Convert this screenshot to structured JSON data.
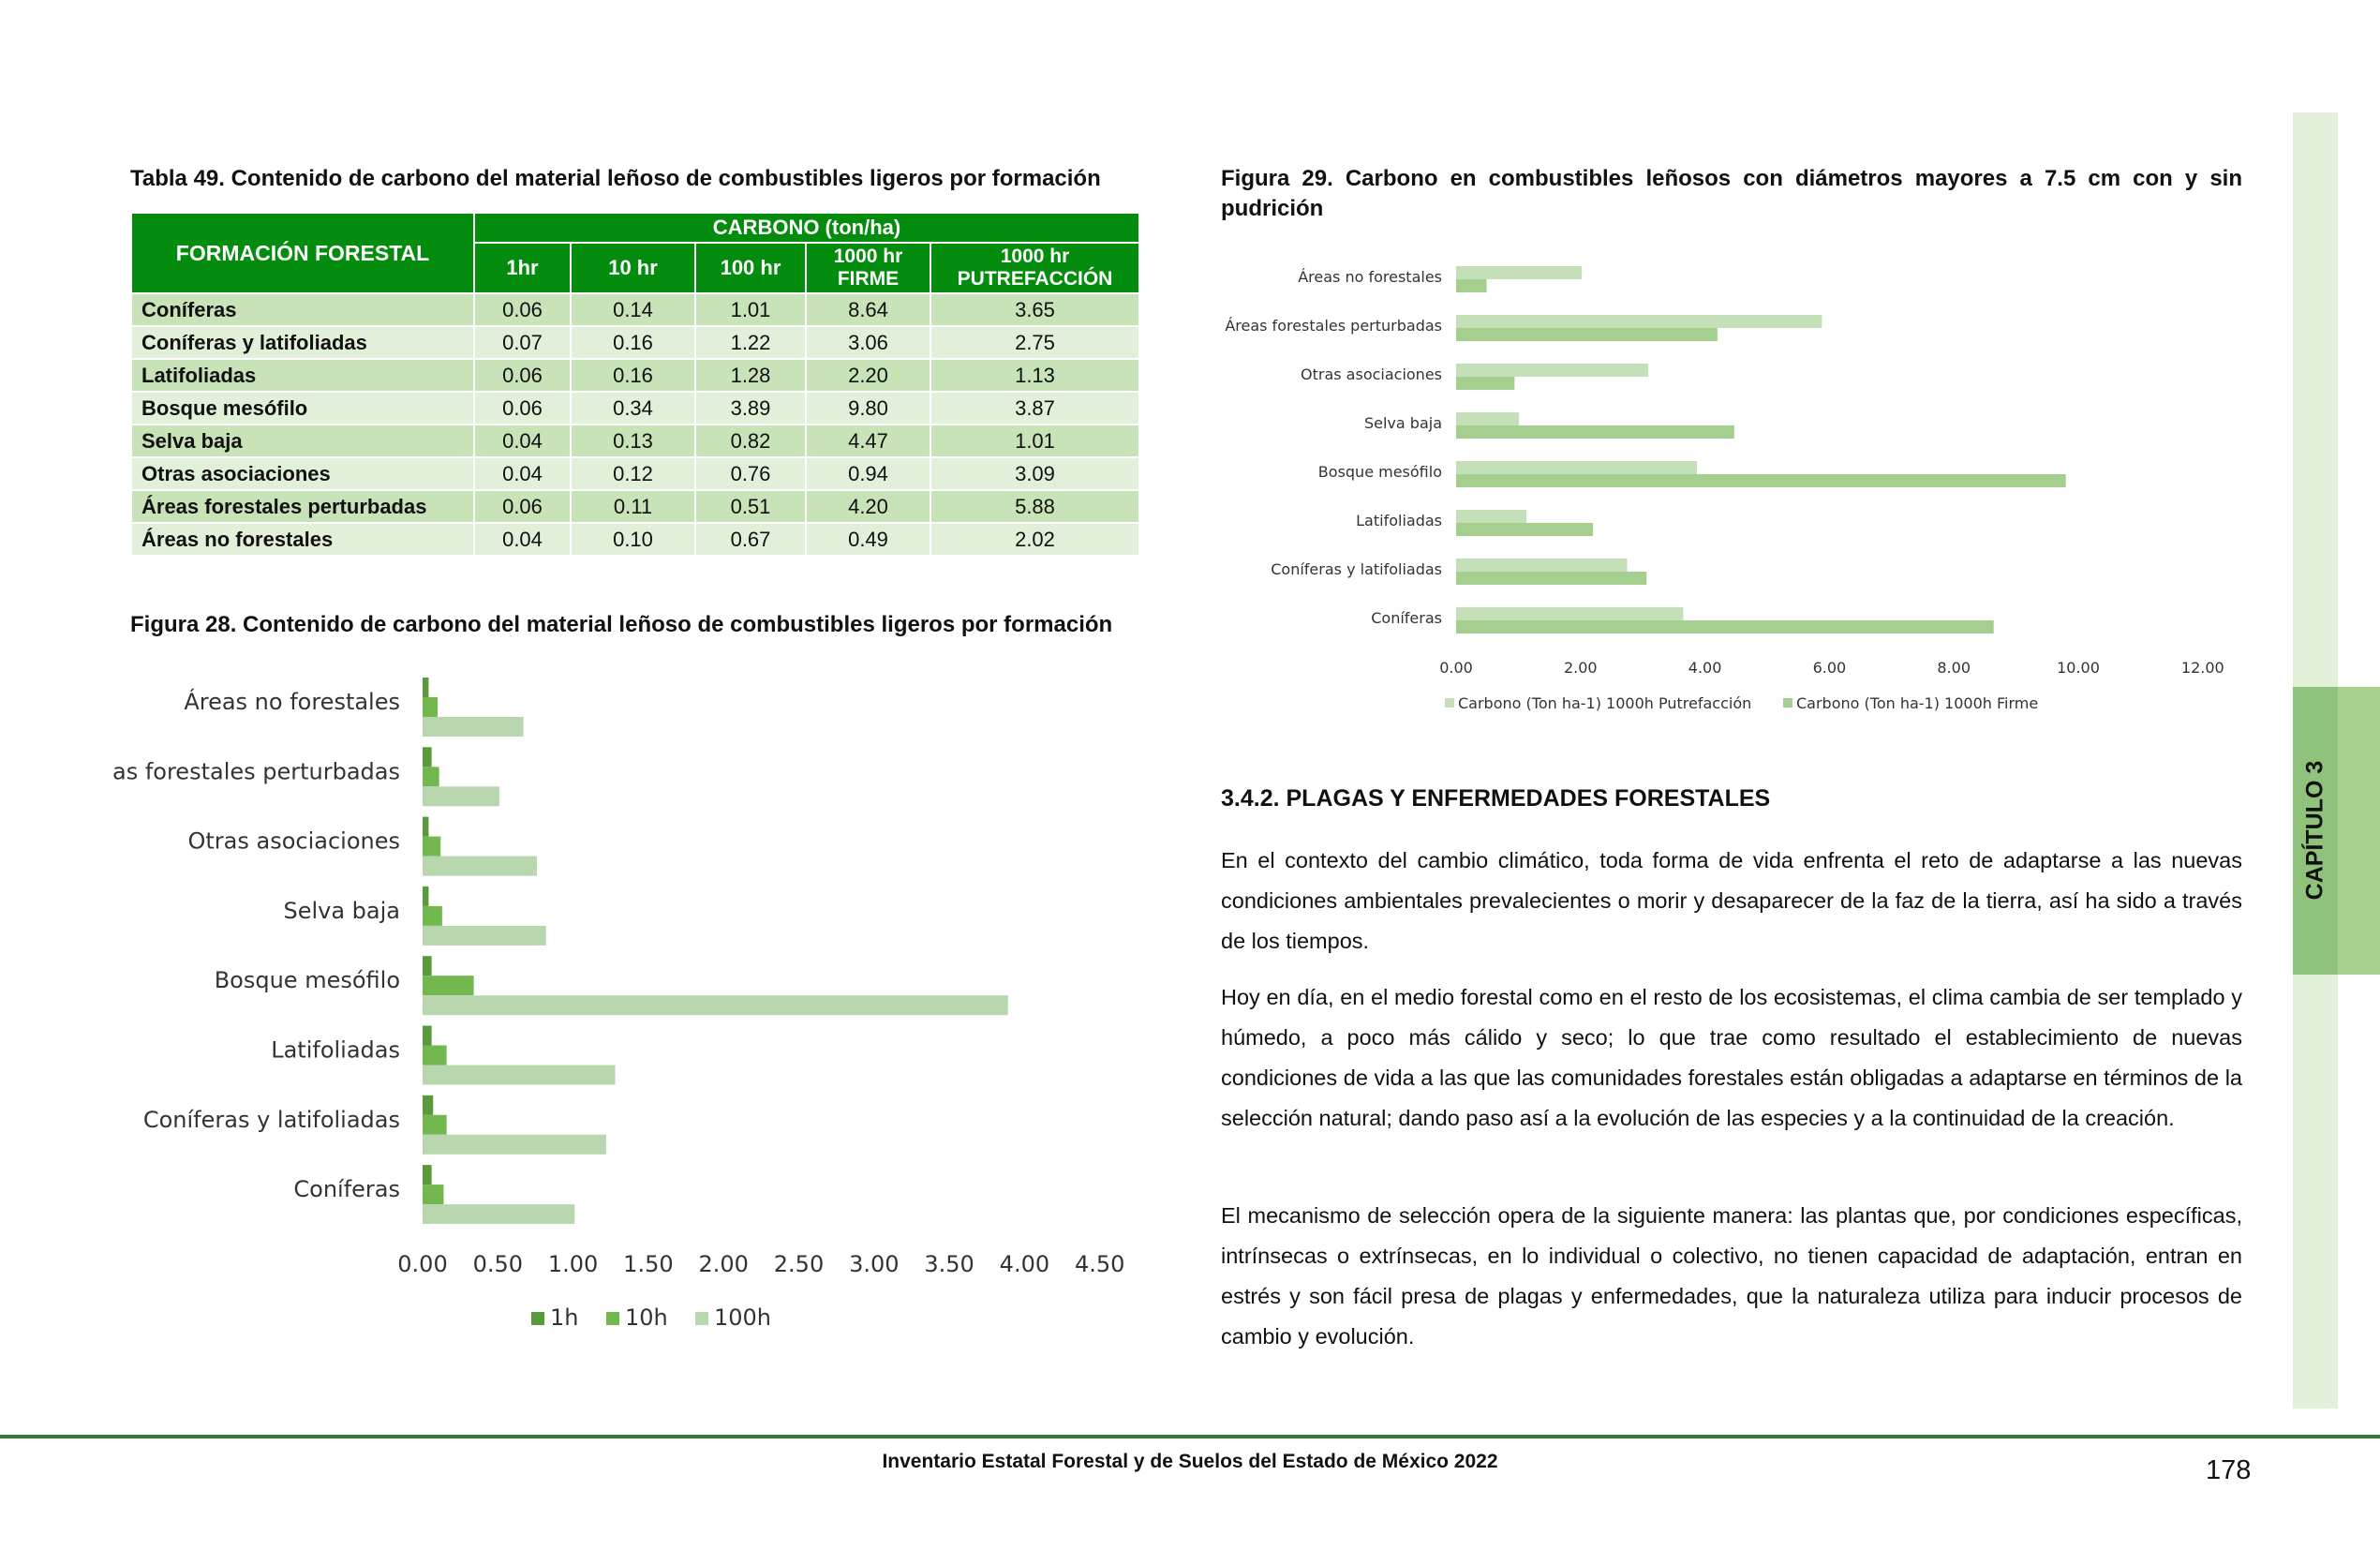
{
  "table": {
    "caption": "Tabla 49. Contenido de carbono del material leñoso de combustibles ligeros por formación",
    "header_formacion": "FORMACIÓN FORESTAL",
    "header_carbono": "CARBONO (ton/ha)",
    "columns": [
      "1hr",
      "10 hr",
      "100 hr",
      "1000 hr FIRME",
      "1000 hr PUTREFACCIÓN"
    ],
    "rows": [
      {
        "name": "Coníferas",
        "v": [
          "0.06",
          "0.14",
          "1.01",
          "8.64",
          "3.65"
        ]
      },
      {
        "name": "Coníferas y latifoliadas",
        "v": [
          "0.07",
          "0.16",
          "1.22",
          "3.06",
          "2.75"
        ]
      },
      {
        "name": "Latifoliadas",
        "v": [
          "0.06",
          "0.16",
          "1.28",
          "2.20",
          "1.13"
        ]
      },
      {
        "name": "Bosque mesófilo",
        "v": [
          "0.06",
          "0.34",
          "3.89",
          "9.80",
          "3.87"
        ]
      },
      {
        "name": "Selva baja",
        "v": [
          "0.04",
          "0.13",
          "0.82",
          "4.47",
          "1.01"
        ]
      },
      {
        "name": "Otras asociaciones",
        "v": [
          "0.04",
          "0.12",
          "0.76",
          "0.94",
          "3.09"
        ]
      },
      {
        "name": "Áreas forestales perturbadas",
        "v": [
          "0.06",
          "0.11",
          "0.51",
          "4.20",
          "5.88"
        ]
      },
      {
        "name": "Áreas no forestales",
        "v": [
          "0.04",
          "0.10",
          "0.67",
          "0.49",
          "2.02"
        ]
      }
    ]
  },
  "figure28": {
    "caption": "Figura 28. Contenido de carbono del material leñoso de combustibles ligeros por formación",
    "chart_data": {
      "type": "bar",
      "orientation": "horizontal",
      "categories": [
        "Áreas no forestales",
        "Áreas forestales perturbadas",
        "Otras asociaciones",
        "Selva baja",
        "Bosque mesófilo",
        "Latifoliadas",
        "Coníferas y latifoliadas",
        "Coníferas"
      ],
      "series": [
        {
          "name": "1h",
          "color": "#5a9a3c",
          "values": [
            0.04,
            0.06,
            0.04,
            0.04,
            0.06,
            0.06,
            0.07,
            0.06
          ]
        },
        {
          "name": "10h",
          "color": "#72b84f",
          "values": [
            0.1,
            0.11,
            0.12,
            0.13,
            0.34,
            0.16,
            0.16,
            0.14
          ]
        },
        {
          "name": "100h",
          "color": "#b9d7ae",
          "values": [
            0.67,
            0.51,
            0.76,
            0.82,
            3.89,
            1.28,
            1.22,
            1.01
          ]
        }
      ],
      "xlim": [
        0,
        4.5
      ],
      "xticks": [
        "0.00",
        "0.50",
        "1.00",
        "1.50",
        "2.00",
        "2.50",
        "3.00",
        "3.50",
        "4.00",
        "4.50"
      ],
      "legend_position": "bottom",
      "grid": false
    }
  },
  "figure29": {
    "caption": "Figura 29. Carbono en combustibles leñosos con diámetros mayores a 7.5 cm con y sin pudrición",
    "chart_data": {
      "type": "bar",
      "orientation": "horizontal",
      "categories": [
        "Áreas no forestales",
        "Áreas forestales perturbadas",
        "Otras asociaciones",
        "Selva baja",
        "Bosque mesófilo",
        "Latifoliadas",
        "Coníferas y latifoliadas",
        "Coníferas"
      ],
      "series": [
        {
          "name": "Carbono (Ton ha-1) 1000h Putrefacción",
          "color": "#c5e0b8",
          "values": [
            2.02,
            5.88,
            3.09,
            1.01,
            3.87,
            1.13,
            2.75,
            3.65
          ]
        },
        {
          "name": "Carbono (Ton ha-1) 1000h Firme",
          "color": "#a5cf8e",
          "values": [
            0.49,
            4.2,
            0.94,
            4.47,
            9.8,
            2.2,
            3.06,
            8.64
          ]
        }
      ],
      "xlim": [
        0,
        12
      ],
      "xticks": [
        "0.00",
        "2.00",
        "4.00",
        "6.00",
        "8.00",
        "10.00",
        "12.00"
      ],
      "legend_position": "bottom",
      "grid": false
    }
  },
  "section": {
    "title": "3.4.2. PLAGAS Y ENFERMEDADES FORESTALES",
    "paragraphs": [
      "En el contexto del cambio climático, toda forma de vida enfrenta el reto de adaptarse a las nuevas condiciones ambientales prevalecientes o morir y desaparecer de la faz de la tierra, así ha sido a través de los tiempos.",
      "Hoy en día, en el medio forestal como en el resto de los ecosistemas, el clima cambia de ser templado y húmedo, a poco más cálido y seco; lo que trae como resultado el establecimiento de nuevas condiciones de vida a las que las comunidades forestales están obligadas a adaptarse en términos de la selección natural; dando paso así a la evolución de las especies y a la continuidad de la creación.",
      "El mecanismo de selección opera de la siguiente manera: las plantas que, por condiciones específicas, intrínsecas o extrínsecas, en lo individual o colectivo, no tienen capacidad de adaptación, entran en estrés y son fácil presa de plagas y enfermedades, que la naturaleza utiliza para inducir procesos de cambio y evolución."
    ]
  },
  "sidebar": {
    "chapter": "CAPÍTULO 3",
    "accent": "#8fc27a"
  },
  "footer": {
    "title": "Inventario Estatal Forestal y de Suelos del Estado de México 2022",
    "page": "178"
  }
}
